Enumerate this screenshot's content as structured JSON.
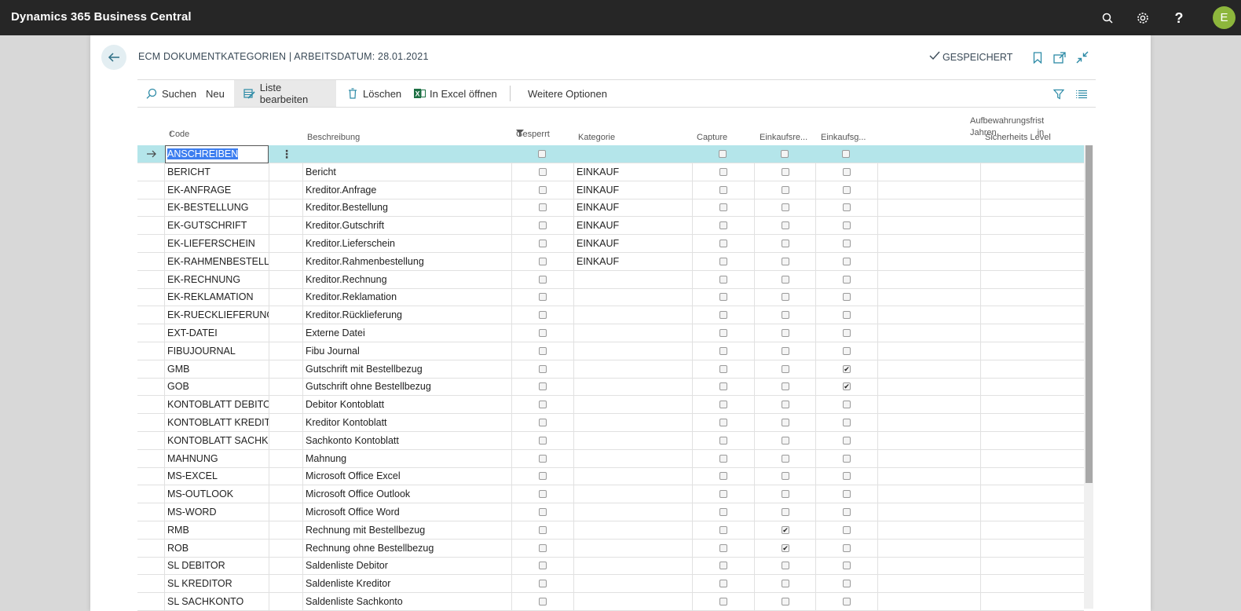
{
  "app": {
    "title": "Dynamics 365 Business Central",
    "user_initial": "E"
  },
  "page": {
    "title": "ECM DOKUMENTKATEGORIEN | ARBEITSDATUM: 28.01.2021",
    "saved_status": "GESPEICHERT"
  },
  "actions": {
    "search": "Suchen",
    "new": "Neu",
    "edit_list": "Liste bearbeiten",
    "delete": "Löschen",
    "open_excel": "In Excel öffnen",
    "more": "Weitere Optionen"
  },
  "columns": {
    "code": "Code",
    "sort_indicator": "↑",
    "description": "Beschreibung",
    "blocked": "Gesperrt",
    "category": "Kategorie",
    "capture": "Capture",
    "purchase_inv": "Einkaufsre...",
    "purchase_cr": "Einkaufsg...",
    "retention_line1": "Aufbewahrungsfrist in",
    "retention_line2": "Jahren",
    "security": "Sicherheits Level"
  },
  "rows": [
    {
      "code": "ANSCHREIBEN",
      "desc": "",
      "cat": "",
      "inv": false,
      "cr": false
    },
    {
      "code": "BERICHT",
      "desc": "Bericht",
      "cat": "EINKAUF",
      "inv": false,
      "cr": false
    },
    {
      "code": "EK-ANFRAGE",
      "desc": "Kreditor.Anfrage",
      "cat": "EINKAUF",
      "inv": false,
      "cr": false
    },
    {
      "code": "EK-BESTELLUNG",
      "desc": "Kreditor.Bestellung",
      "cat": "EINKAUF",
      "inv": false,
      "cr": false
    },
    {
      "code": "EK-GUTSCHRIFT",
      "desc": "Kreditor.Gutschrift",
      "cat": "EINKAUF",
      "inv": false,
      "cr": false
    },
    {
      "code": "EK-LIEFERSCHEIN",
      "desc": "Kreditor.Lieferschein",
      "cat": "EINKAUF",
      "inv": false,
      "cr": false
    },
    {
      "code": "EK-RAHMENBESTELL...",
      "desc": "Kreditor.Rahmenbestellung",
      "cat": "EINKAUF",
      "inv": false,
      "cr": false
    },
    {
      "code": "EK-RECHNUNG",
      "desc": "Kreditor.Rechnung",
      "cat": "",
      "inv": false,
      "cr": false
    },
    {
      "code": "EK-REKLAMATION",
      "desc": "Kreditor.Reklamation",
      "cat": "",
      "inv": false,
      "cr": false
    },
    {
      "code": "EK-RUECKLIEFERUNG",
      "desc": "Kreditor.Rücklieferung",
      "cat": "",
      "inv": false,
      "cr": false
    },
    {
      "code": "EXT-DATEI",
      "desc": "Externe Datei",
      "cat": "",
      "inv": false,
      "cr": false
    },
    {
      "code": "FIBUJOURNAL",
      "desc": "Fibu Journal",
      "cat": "",
      "inv": false,
      "cr": false
    },
    {
      "code": "GMB",
      "desc": "Gutschrift mit Bestellbezug",
      "cat": "",
      "inv": false,
      "cr": true
    },
    {
      "code": "GOB",
      "desc": "Gutschrift ohne Bestellbezug",
      "cat": "",
      "inv": false,
      "cr": true
    },
    {
      "code": "KONTOBLATT DEBITOR",
      "desc": "Debitor Kontoblatt",
      "cat": "",
      "inv": false,
      "cr": false
    },
    {
      "code": "KONTOBLATT KREDIT...",
      "desc": "Kreditor Kontoblatt",
      "cat": "",
      "inv": false,
      "cr": false
    },
    {
      "code": "KONTOBLATT SACHK...",
      "desc": "Sachkonto Kontoblatt",
      "cat": "",
      "inv": false,
      "cr": false
    },
    {
      "code": "MAHNUNG",
      "desc": "Mahnung",
      "cat": "",
      "inv": false,
      "cr": false
    },
    {
      "code": "MS-EXCEL",
      "desc": "Microsoft Office Excel",
      "cat": "",
      "inv": false,
      "cr": false
    },
    {
      "code": "MS-OUTLOOK",
      "desc": "Microsoft Office Outlook",
      "cat": "",
      "inv": false,
      "cr": false
    },
    {
      "code": "MS-WORD",
      "desc": "Microsoft Office Word",
      "cat": "",
      "inv": false,
      "cr": false
    },
    {
      "code": "RMB",
      "desc": "Rechnung mit Bestellbezug",
      "cat": "",
      "inv": true,
      "cr": false
    },
    {
      "code": "ROB",
      "desc": "Rechnung ohne Bestellbezug",
      "cat": "",
      "inv": true,
      "cr": false
    },
    {
      "code": "SL DEBITOR",
      "desc": "Saldenliste Debitor",
      "cat": "",
      "inv": false,
      "cr": false
    },
    {
      "code": "SL KREDITOR",
      "desc": "Saldenliste Kreditor",
      "cat": "",
      "inv": false,
      "cr": false
    },
    {
      "code": "SL SACHKONTO",
      "desc": "Saldenliste Sachkonto",
      "cat": "",
      "inv": false,
      "cr": false
    }
  ]
}
